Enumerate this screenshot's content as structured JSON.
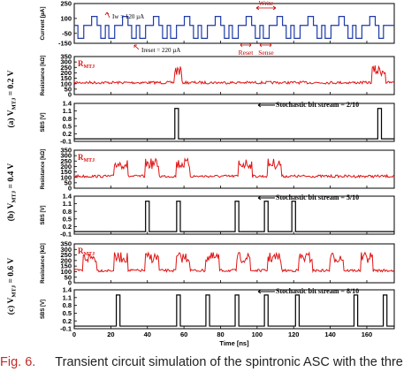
{
  "colors": {
    "resistance": "#e01414",
    "signal": "#1e3aa8",
    "axis": "#000000"
  },
  "caption": {
    "fig_label": "Fig. 6.",
    "text": "Transient circuit simulation of the spintronic ASC with the thre"
  },
  "chart_data": {
    "type": "line",
    "x_range": [
      0,
      175
    ],
    "x_ticks": [
      "0",
      "20",
      "40",
      "60",
      "80",
      "100",
      "120",
      "140",
      "160"
    ],
    "x_tick_values": [
      0,
      20,
      40,
      60,
      80,
      100,
      120,
      140,
      160
    ],
    "xlabel": "Time [ns]",
    "current": {
      "ylabel": "Current [µA]",
      "ylim": [
        -150,
        250
      ],
      "y_ticks": [
        250,
        100,
        -50,
        -150
      ],
      "annotations": {
        "i_w": "Iw = 120 µA",
        "i_reset": "Ireset = 220 µA",
        "write": "Write",
        "reset": "Reset",
        "sense": "Sense"
      },
      "period_ns": 16.9,
      "levels_uA": {
        "high": 120,
        "mid": 30,
        "low": -100
      }
    },
    "panels": [
      {
        "side_label": "(a) VMTJ = 0.2 V",
        "side_prefix": "(a) V",
        "side_sub": "MTJ",
        "side_suffix": " = 0.2 V",
        "rmtj_label": "RMTJ",
        "rmtj_main": "R",
        "rmtj_sub": "MTJ",
        "resistance_ylabel": "Resistance [kΩ]",
        "resistance_ylim": [
          0,
          350
        ],
        "resistance_ticks": [
          350,
          300,
          250,
          200,
          150,
          100,
          50,
          0
        ],
        "resistance_base_kohm": 110,
        "resistance_high_kohm": 240,
        "high_intervals_ns": [
          [
            55,
            58.5
          ],
          [
            163,
            170
          ]
        ],
        "sbs_ylabel": "SBS [V]",
        "sbs_ylim": [
          -0.1,
          1.4
        ],
        "sbs_ticks": [
          1.4,
          1.1,
          0.8,
          0.5,
          0.2,
          -0.1
        ],
        "pulses_ns": [
          [
            55,
            57
          ],
          [
            166,
            168
          ]
        ],
        "stream_label": "Stochastic bit stream = 2/10"
      },
      {
        "side_label": "(b) VMTJ = 0.4 V",
        "side_prefix": "(b) V",
        "side_sub": "MTJ",
        "side_suffix": " = 0.4 V",
        "rmtj_label": "RMTJ",
        "rmtj_main": "R",
        "rmtj_sub": "MTJ",
        "resistance_ylabel": "Resistance [kΩ]",
        "resistance_ylim": [
          0,
          350
        ],
        "resistance_ticks": [
          350,
          300,
          250,
          200,
          150,
          100,
          50,
          0
        ],
        "resistance_base_kohm": 110,
        "resistance_high_kohm": 245,
        "high_intervals_ns": [
          [
            22,
            29
          ],
          [
            39,
            46
          ],
          [
            56,
            63
          ],
          [
            90,
            97
          ],
          [
            106,
            113
          ]
        ],
        "sbs_ylabel": "SBS [V]",
        "sbs_ylim": [
          -0.1,
          1.4
        ],
        "sbs_ticks": [
          1.4,
          1.1,
          0.8,
          0.5,
          0.2,
          -0.1
        ],
        "pulses_ns": [
          [
            39,
            41
          ],
          [
            56,
            58
          ],
          [
            88,
            90
          ],
          [
            104,
            106
          ],
          [
            119,
            121
          ]
        ],
        "stream_label": "Stochastic bit stream = 5/10"
      },
      {
        "side_label": "(c) VMTJ = 0.6 V",
        "side_prefix": "(c) V",
        "side_sub": "MTJ",
        "side_suffix": " = 0.6 V",
        "rmtj_label": "RMTJ",
        "rmtj_main": "R",
        "rmtj_sub": "MTJ",
        "resistance_ylabel": "Resistance [kΩ]",
        "resistance_ylim": [
          0,
          350
        ],
        "resistance_ticks": [
          350,
          300,
          250,
          200,
          150,
          100,
          50,
          0
        ],
        "resistance_base_kohm": 110,
        "resistance_high_kohm": 245,
        "high_intervals_ns": [
          [
            5,
            12
          ],
          [
            22,
            29
          ],
          [
            39,
            46
          ],
          [
            56,
            63
          ],
          [
            72,
            79
          ],
          [
            89,
            96
          ],
          [
            106,
            113
          ],
          [
            123,
            130
          ],
          [
            140,
            147
          ],
          [
            157,
            163
          ]
        ],
        "sbs_ylabel": "SBS [V]",
        "sbs_ylim": [
          -0.1,
          1.4
        ],
        "sbs_ticks": [
          1.4,
          1.1,
          0.8,
          0.5,
          0.2,
          -0.1
        ],
        "pulses_ns": [
          [
            23,
            25
          ],
          [
            56,
            58
          ],
          [
            72,
            74
          ],
          [
            88,
            90
          ],
          [
            104,
            106
          ],
          [
            121,
            123
          ],
          [
            153,
            155
          ],
          [
            169,
            171
          ]
        ],
        "stream_label": "Stochastic bit stream = 8/10"
      }
    ]
  }
}
